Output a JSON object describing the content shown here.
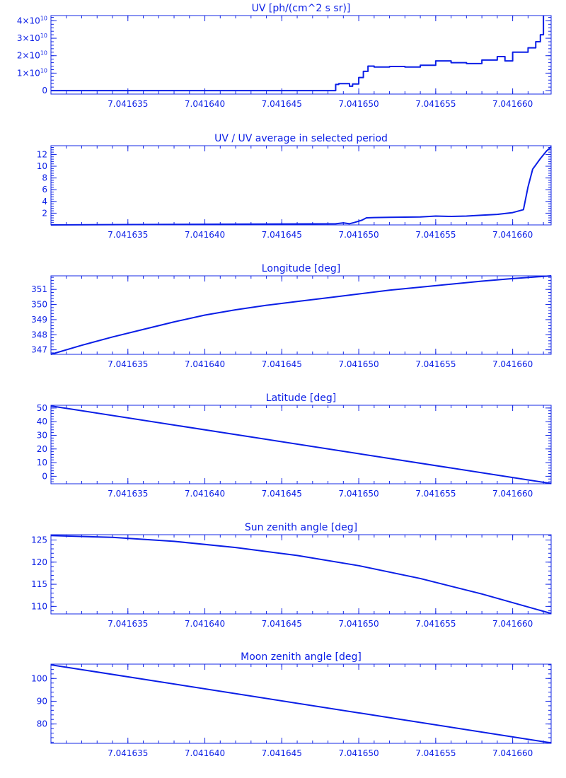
{
  "colors": {
    "axis": "#1428e6",
    "line": "#0a1ee6",
    "background": "#ffffff"
  },
  "x_axis": {
    "range": [
      7.04163,
      7.0416625
    ],
    "ticks": [
      7.041635,
      7.04164,
      7.041645,
      7.04165,
      7.041655,
      7.04166
    ],
    "tick_labels": [
      "7.041635",
      "7.041640",
      "7.041645",
      "7.041650",
      "7.041655",
      "7.041660"
    ]
  },
  "chart_data": [
    {
      "type": "line",
      "title": "UV [ph/(cm^2 s sr)]",
      "ylim": [
        -2000000000.0,
        43000000000.0
      ],
      "y_ticks": [
        0,
        10000000000.0,
        20000000000.0,
        30000000000.0,
        40000000000.0
      ],
      "y_tick_labels": [
        {
          "mantissa": "0",
          "exp": ""
        },
        {
          "mantissa": "1×10",
          "exp": "10"
        },
        {
          "mantissa": "2×10",
          "exp": "10"
        },
        {
          "mantissa": "3×10",
          "exp": "10"
        },
        {
          "mantissa": "4×10",
          "exp": "10"
        }
      ],
      "step": true,
      "x": [
        7.04163,
        7.0416485,
        7.0416487,
        7.0416494,
        7.0416496,
        7.04165,
        7.0416503,
        7.0416506,
        7.041651,
        7.041652,
        7.041653,
        7.041654,
        7.041655,
        7.041656,
        7.041657,
        7.041658,
        7.041659,
        7.0416595,
        7.04166,
        7.041661,
        7.0416615,
        7.0416618,
        7.041662
      ],
      "y": [
        0,
        3500000000.0,
        4000000000.0,
        2500000000.0,
        3800000000.0,
        7500000000.0,
        11000000000.0,
        14000000000.0,
        13500000000.0,
        13800000000.0,
        13500000000.0,
        14500000000.0,
        17000000000.0,
        16000000000.0,
        15500000000.0,
        17500000000.0,
        19500000000.0,
        17000000000.0,
        22000000000.0,
        24500000000.0,
        28000000000.0,
        32000000000.0,
        43000000000.0
      ]
    },
    {
      "type": "line",
      "title": "UV / UV average in selected period",
      "ylim": [
        0,
        13.5
      ],
      "y_ticks": [
        2,
        4,
        6,
        8,
        10,
        12
      ],
      "y_tick_labels": [
        "2",
        "4",
        "6",
        "8",
        "10",
        "12"
      ],
      "x": [
        7.04163,
        7.0416485,
        7.041649,
        7.0416494,
        7.0416497,
        7.0416502,
        7.0416505,
        7.041651,
        7.041652,
        7.041653,
        7.041654,
        7.041655,
        7.041656,
        7.041657,
        7.041658,
        7.041659,
        7.04166,
        7.0416607,
        7.041661,
        7.0416613,
        7.0416618,
        7.0416622,
        7.0416625
      ],
      "y": [
        0,
        0.2,
        0.35,
        0.2,
        0.4,
        0.8,
        1.2,
        1.25,
        1.3,
        1.32,
        1.35,
        1.5,
        1.45,
        1.5,
        1.65,
        1.8,
        2.1,
        2.6,
        6.5,
        9.5,
        11.3,
        12.6,
        13.3
      ]
    },
    {
      "type": "line",
      "title": "Longitude [deg]",
      "ylim": [
        346.7,
        351.9
      ],
      "y_ticks": [
        347,
        348,
        349,
        350,
        351
      ],
      "y_tick_labels": [
        "347",
        "348",
        "349",
        "350",
        "351"
      ],
      "x": [
        7.04163,
        7.041632,
        7.041634,
        7.041636,
        7.041638,
        7.04164,
        7.041642,
        7.041644,
        7.041646,
        7.041648,
        7.04165,
        7.041652,
        7.041654,
        7.041656,
        7.041658,
        7.04166,
        7.0416625
      ],
      "y": [
        346.7,
        347.3,
        347.85,
        348.35,
        348.85,
        349.3,
        349.65,
        349.95,
        350.2,
        350.45,
        350.7,
        350.95,
        351.15,
        351.35,
        351.55,
        351.72,
        351.9
      ]
    },
    {
      "type": "line",
      "title": "Latitude [deg]",
      "ylim": [
        -5.5,
        52
      ],
      "y_ticks": [
        0,
        10,
        20,
        30,
        40,
        50
      ],
      "y_tick_labels": [
        "0",
        "10",
        "20",
        "30",
        "40",
        "50"
      ],
      "x": [
        7.04163,
        7.0416625
      ],
      "y": [
        51.5,
        -5.3
      ]
    },
    {
      "type": "line",
      "title": "Sun zenith angle [deg]",
      "ylim": [
        108.3,
        126.2
      ],
      "y_ticks": [
        110,
        115,
        120,
        125
      ],
      "y_tick_labels": [
        "110",
        "115",
        "120",
        "125"
      ],
      "x": [
        7.04163,
        7.041634,
        7.041638,
        7.041642,
        7.041646,
        7.04165,
        7.041654,
        7.041658,
        7.0416625
      ],
      "y": [
        126.0,
        125.6,
        124.7,
        123.3,
        121.5,
        119.2,
        116.3,
        112.8,
        108.4
      ]
    },
    {
      "type": "line",
      "title": "Moon zenith angle [deg]",
      "ylim": [
        71.5,
        106.3
      ],
      "y_ticks": [
        80,
        90,
        100
      ],
      "y_tick_labels": [
        "80",
        "90",
        "100"
      ],
      "x": [
        7.04163,
        7.0416625
      ],
      "y": [
        106.0,
        71.7
      ]
    }
  ]
}
